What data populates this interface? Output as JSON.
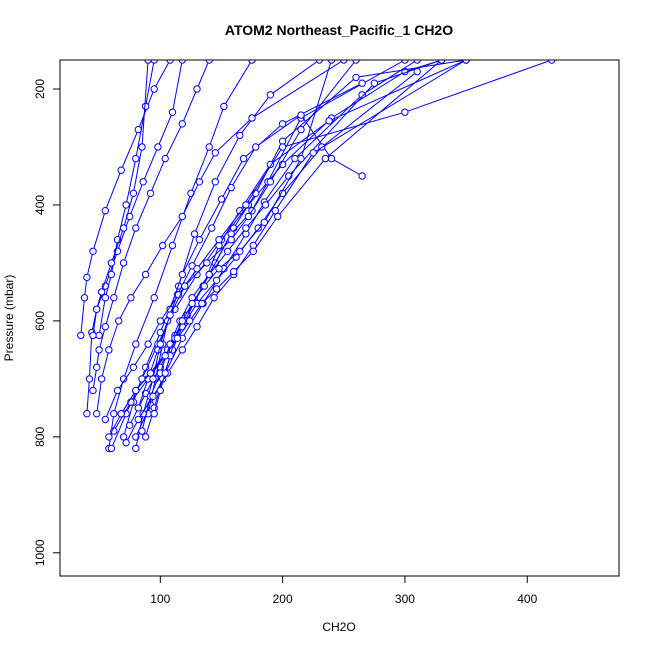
{
  "chart_data": {
    "type": "line",
    "title": "ATOM2 Northeast_Pacific_1 CH2O",
    "xlabel": "CH2O",
    "ylabel": "Pressure (mbar)",
    "xlim": [
      18,
      475
    ],
    "ylim": [
      1040,
      150
    ],
    "y_reversed": true,
    "grid": false,
    "xticks": [
      100,
      200,
      300,
      400
    ],
    "yticks": [
      200,
      400,
      600,
      800,
      1000
    ],
    "series_color": "#0000ff",
    "marker": "open-circle",
    "series": [
      {
        "points": [
          [
            58,
            820
          ],
          [
            62,
            760
          ],
          [
            70,
            700
          ],
          [
            80,
            640
          ],
          [
            95,
            560
          ],
          [
            110,
            470
          ],
          [
            125,
            380
          ],
          [
            140,
            300
          ],
          [
            152,
            230
          ],
          [
            175,
            150
          ]
        ]
      },
      {
        "points": [
          [
            70,
            800
          ],
          [
            78,
            740
          ],
          [
            88,
            680
          ],
          [
            100,
            620
          ],
          [
            115,
            540
          ],
          [
            128,
            450
          ],
          [
            145,
            360
          ],
          [
            165,
            280
          ],
          [
            190,
            210
          ],
          [
            230,
            150
          ]
        ]
      },
      {
        "points": [
          [
            60,
            820
          ],
          [
            72,
            760
          ],
          [
            85,
            700
          ],
          [
            98,
            640
          ],
          [
            112,
            580
          ],
          [
            130,
            520
          ],
          [
            150,
            460
          ],
          [
            172,
            400
          ],
          [
            200,
            330
          ],
          [
            240,
            250
          ],
          [
            300,
            170
          ],
          [
            330,
            150
          ]
        ]
      },
      {
        "points": [
          [
            80,
            800
          ],
          [
            92,
            745
          ],
          [
            104,
            690
          ],
          [
            118,
            630
          ],
          [
            135,
            570
          ],
          [
            152,
            510
          ],
          [
            170,
            450
          ],
          [
            185,
            395
          ],
          [
            210,
            320
          ],
          [
            265,
            210
          ],
          [
            310,
            150
          ]
        ]
      },
      {
        "points": [
          [
            75,
            780
          ],
          [
            88,
            725
          ],
          [
            100,
            680
          ],
          [
            112,
            625
          ],
          [
            128,
            565
          ],
          [
            145,
            500
          ],
          [
            160,
            440
          ],
          [
            178,
            380
          ],
          [
            200,
            290
          ],
          [
            260,
            180
          ],
          [
            350,
            150
          ]
        ]
      },
      {
        "points": [
          [
            68,
            760
          ],
          [
            80,
            720
          ],
          [
            92,
            690
          ],
          [
            106,
            650
          ],
          [
            122,
            590
          ],
          [
            140,
            520
          ],
          [
            158,
            450
          ],
          [
            175,
            410
          ],
          [
            188,
            360
          ],
          [
            215,
            250
          ],
          [
            300,
            150
          ]
        ]
      },
      {
        "points": [
          [
            62,
            790
          ],
          [
            76,
            740
          ],
          [
            90,
            700
          ],
          [
            104,
            660
          ],
          [
            120,
            600
          ],
          [
            135,
            540
          ],
          [
            148,
            470
          ],
          [
            165,
            410
          ],
          [
            190,
            330
          ],
          [
            238,
            255
          ],
          [
            350,
            150
          ]
        ]
      },
      {
        "points": [
          [
            90,
            760
          ],
          [
            96,
            700
          ],
          [
            102,
            640
          ],
          [
            108,
            580
          ],
          [
            118,
            520
          ],
          [
            132,
            460
          ],
          [
            150,
            390
          ],
          [
            168,
            320
          ],
          [
            200,
            260
          ],
          [
            265,
            190
          ]
        ]
      },
      {
        "points": [
          [
            82,
            750
          ],
          [
            90,
            700
          ],
          [
            98,
            650
          ],
          [
            106,
            600
          ],
          [
            114,
            555
          ],
          [
            126,
            505
          ],
          [
            142,
            440
          ],
          [
            158,
            370
          ],
          [
            178,
            300
          ],
          [
            215,
            245
          ],
          [
            240,
            320
          ],
          [
            265,
            350
          ]
        ]
      },
      {
        "points": [
          [
            55,
            770
          ],
          [
            65,
            720
          ],
          [
            78,
            680
          ],
          [
            90,
            640
          ],
          [
            100,
            600
          ],
          [
            115,
            555
          ],
          [
            130,
            510
          ],
          [
            148,
            460
          ],
          [
            170,
            400
          ],
          [
            200,
            300
          ],
          [
            300,
            240
          ],
          [
            420,
            150
          ]
        ]
      },
      {
        "points": [
          [
            48,
            760
          ],
          [
            52,
            700
          ],
          [
            58,
            650
          ],
          [
            66,
            600
          ],
          [
            76,
            560
          ],
          [
            88,
            520
          ],
          [
            102,
            470
          ],
          [
            118,
            420
          ],
          [
            132,
            360
          ],
          [
            145,
            310
          ],
          [
            175,
            250
          ],
          [
            250,
            150
          ]
        ]
      },
      {
        "points": [
          [
            45,
            720
          ],
          [
            48,
            680
          ],
          [
            50,
            650
          ],
          [
            55,
            610
          ],
          [
            62,
            560
          ],
          [
            70,
            500
          ],
          [
            80,
            440
          ],
          [
            92,
            380
          ],
          [
            104,
            320
          ],
          [
            118,
            260
          ],
          [
            130,
            200
          ],
          [
            140,
            150
          ]
        ]
      },
      {
        "points": [
          [
            40,
            760
          ],
          [
            42,
            700
          ],
          [
            44,
            620
          ],
          [
            48,
            580
          ],
          [
            55,
            540
          ],
          [
            65,
            480
          ],
          [
            75,
            420
          ],
          [
            86,
            360
          ],
          [
            98,
            300
          ],
          [
            110,
            240
          ],
          [
            118,
            150
          ]
        ]
      },
      {
        "points": [
          [
            35,
            625
          ],
          [
            38,
            560
          ],
          [
            40,
            525
          ],
          [
            45,
            480
          ],
          [
            55,
            410
          ],
          [
            68,
            340
          ],
          [
            82,
            270
          ],
          [
            95,
            200
          ],
          [
            108,
            150
          ]
        ]
      },
      {
        "points": [
          [
            50,
            625
          ],
          [
            55,
            560
          ],
          [
            60,
            520
          ],
          [
            65,
            460
          ],
          [
            72,
            400
          ],
          [
            80,
            320
          ],
          [
            88,
            230
          ],
          [
            95,
            150
          ]
        ]
      },
      {
        "points": [
          [
            45,
            625
          ],
          [
            48,
            580
          ],
          [
            52,
            550
          ],
          [
            60,
            500
          ],
          [
            70,
            440
          ],
          [
            78,
            380
          ],
          [
            85,
            300
          ],
          [
            90,
            150
          ]
        ]
      },
      {
        "points": [
          [
            80,
            820
          ],
          [
            86,
            760
          ],
          [
            94,
            700
          ],
          [
            100,
            640
          ],
          [
            108,
            590
          ],
          [
            120,
            540
          ],
          [
            138,
            500
          ],
          [
            158,
            460
          ],
          [
            172,
            420
          ],
          [
            190,
            360
          ],
          [
            215,
            270
          ],
          [
            260,
            150
          ]
        ]
      },
      {
        "points": [
          [
            88,
            800
          ],
          [
            95,
            750
          ],
          [
            102,
            700
          ],
          [
            110,
            650
          ],
          [
            118,
            610
          ],
          [
            130,
            570
          ],
          [
            146,
            530
          ],
          [
            162,
            490
          ],
          [
            180,
            440
          ],
          [
            200,
            380
          ],
          [
            232,
            300
          ],
          [
            310,
            170
          ]
        ]
      },
      {
        "points": [
          [
            85,
            790
          ],
          [
            92,
            730
          ],
          [
            100,
            690
          ],
          [
            108,
            640
          ],
          [
            116,
            600
          ],
          [
            126,
            560
          ],
          [
            140,
            520
          ],
          [
            155,
            480
          ],
          [
            170,
            440
          ],
          [
            186,
            400
          ],
          [
            205,
            350
          ],
          [
            275,
            190
          ],
          [
            330,
            150
          ]
        ]
      },
      {
        "points": [
          [
            72,
            810
          ],
          [
            82,
            770
          ],
          [
            94,
            730
          ],
          [
            106,
            690
          ],
          [
            118,
            650
          ],
          [
            130,
            610
          ],
          [
            144,
            560
          ],
          [
            160,
            520
          ],
          [
            176,
            470
          ],
          [
            194,
            410
          ],
          [
            225,
            310
          ],
          [
            350,
            150
          ]
        ]
      },
      {
        "points": [
          [
            95,
            760
          ],
          [
            100,
            720
          ],
          [
            104,
            690
          ],
          [
            108,
            660
          ],
          [
            112,
            630
          ],
          [
            118,
            600
          ],
          [
            126,
            570
          ],
          [
            136,
            540
          ],
          [
            148,
            510
          ],
          [
            165,
            480
          ],
          [
            185,
            430
          ],
          [
            215,
            320
          ],
          [
            240,
            150
          ]
        ]
      },
      {
        "points": [
          [
            58,
            800
          ],
          [
            68,
            760
          ],
          [
            80,
            720
          ],
          [
            92,
            690
          ],
          [
            104,
            660
          ],
          [
            114,
            630
          ],
          [
            124,
            600
          ],
          [
            134,
            570
          ],
          [
            146,
            545
          ],
          [
            160,
            515
          ],
          [
            176,
            480
          ],
          [
            196,
            420
          ],
          [
            235,
            320
          ],
          [
            330,
            150
          ]
        ]
      }
    ]
  }
}
